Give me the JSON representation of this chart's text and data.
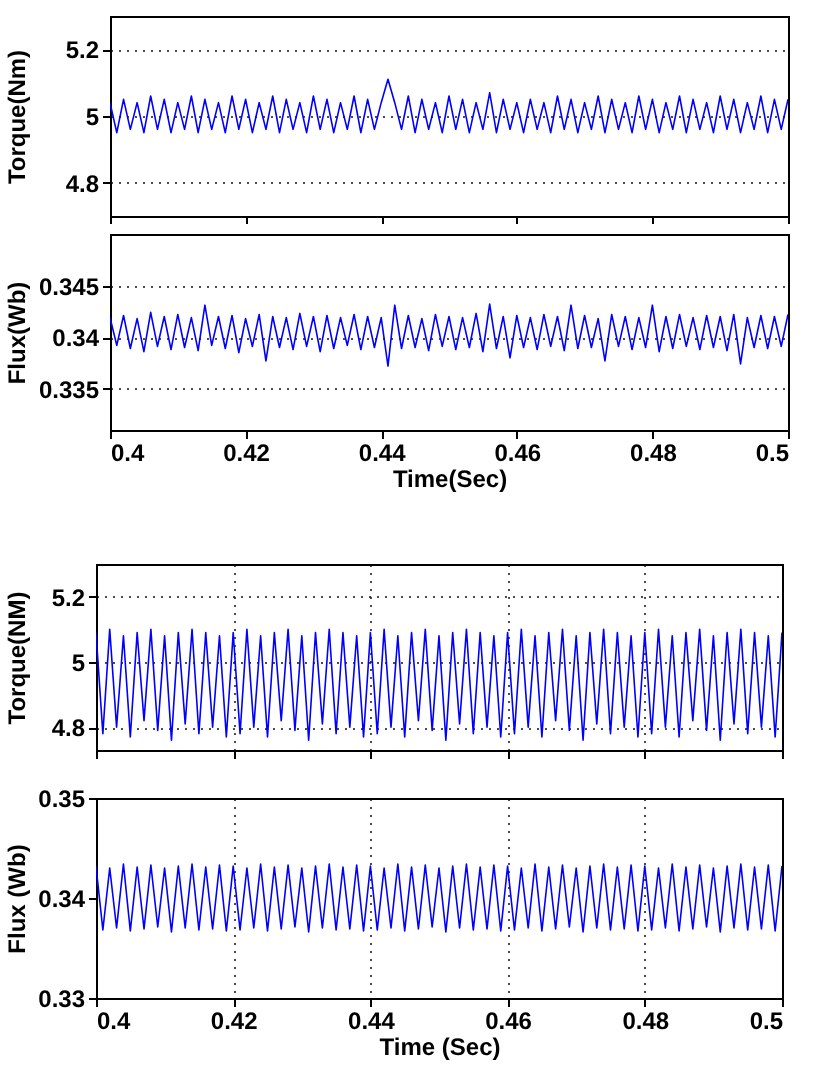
{
  "chart_data": [
    {
      "type": "line",
      "ylabel": "Torque(Nm)",
      "xlim": [
        0.4,
        0.5
      ],
      "xticks": [
        0.4,
        0.42,
        0.44,
        0.46,
        0.48,
        0.5
      ],
      "ylim": [
        4.7,
        5.3
      ],
      "yticks": [
        4.8,
        5,
        5.2
      ],
      "grid": "y",
      "tick_labels": "y",
      "x": [
        0.4,
        0.401,
        0.402,
        0.403,
        0.404,
        0.405,
        0.406,
        0.407,
        0.408,
        0.409,
        0.41,
        0.411,
        0.412,
        0.413,
        0.414,
        0.415,
        0.416,
        0.417,
        0.418,
        0.419,
        0.42,
        0.421,
        0.422,
        0.423,
        0.424,
        0.425,
        0.426,
        0.427,
        0.428,
        0.429,
        0.43,
        0.431,
        0.432,
        0.433,
        0.434,
        0.435,
        0.436,
        0.437,
        0.438,
        0.439,
        0.44,
        0.441,
        0.442,
        0.443,
        0.444,
        0.445,
        0.446,
        0.447,
        0.448,
        0.449,
        0.45,
        0.451,
        0.452,
        0.453,
        0.454,
        0.455,
        0.456,
        0.457,
        0.458,
        0.459,
        0.46,
        0.461,
        0.462,
        0.463,
        0.464,
        0.465,
        0.466,
        0.467,
        0.468,
        0.469,
        0.47,
        0.471,
        0.472,
        0.473,
        0.474,
        0.475,
        0.476,
        0.477,
        0.478,
        0.479,
        0.48,
        0.481,
        0.482,
        0.483,
        0.484,
        0.485,
        0.486,
        0.487,
        0.488,
        0.489,
        0.49,
        0.491,
        0.492,
        0.493,
        0.494,
        0.495,
        0.496,
        0.497,
        0.498,
        0.499,
        0.5
      ],
      "series": [
        {
          "color": "#0000ff",
          "values": [
            5.04,
            4.95,
            5.05,
            4.96,
            5.04,
            4.95,
            5.06,
            4.96,
            5.05,
            4.95,
            5.04,
            4.96,
            5.06,
            4.95,
            5.05,
            4.96,
            5.04,
            4.95,
            5.06,
            4.96,
            5.05,
            4.95,
            5.04,
            4.96,
            5.06,
            4.95,
            5.05,
            4.96,
            5.04,
            4.95,
            5.06,
            4.96,
            5.05,
            4.95,
            5.04,
            4.96,
            5.06,
            4.95,
            5.05,
            4.96,
            5.04,
            5.11,
            5.04,
            4.96,
            5.06,
            4.95,
            5.05,
            4.96,
            5.04,
            4.95,
            5.06,
            4.96,
            5.05,
            4.95,
            5.04,
            4.96,
            5.07,
            4.95,
            5.05,
            4.96,
            5.04,
            4.95,
            5.05,
            4.96,
            5.04,
            4.95,
            5.06,
            4.96,
            5.05,
            4.95,
            5.04,
            4.96,
            5.06,
            4.95,
            5.05,
            4.96,
            5.04,
            4.95,
            5.06,
            4.96,
            5.05,
            4.95,
            5.04,
            4.96,
            5.06,
            4.95,
            5.05,
            4.96,
            5.04,
            4.95,
            5.06,
            4.96,
            5.05,
            4.95,
            5.04,
            4.96,
            5.06,
            4.95,
            5.05,
            4.96,
            5.05
          ]
        }
      ]
    },
    {
      "type": "line",
      "xlabel": "Time(Sec)",
      "ylabel": "Flux(Wb)",
      "xlim": [
        0.4,
        0.5
      ],
      "xticks": [
        0.4,
        0.42,
        0.44,
        0.46,
        0.48,
        0.5
      ],
      "ylim": [
        0.331,
        0.35
      ],
      "yticks": [
        0.335,
        0.34,
        0.345
      ],
      "grid": "y",
      "x": [
        0.4,
        0.401,
        0.402,
        0.403,
        0.404,
        0.405,
        0.406,
        0.407,
        0.408,
        0.409,
        0.41,
        0.411,
        0.412,
        0.413,
        0.414,
        0.415,
        0.416,
        0.417,
        0.418,
        0.419,
        0.42,
        0.421,
        0.422,
        0.423,
        0.424,
        0.425,
        0.426,
        0.427,
        0.428,
        0.429,
        0.43,
        0.431,
        0.432,
        0.433,
        0.434,
        0.435,
        0.436,
        0.437,
        0.438,
        0.439,
        0.44,
        0.441,
        0.442,
        0.443,
        0.444,
        0.445,
        0.446,
        0.447,
        0.448,
        0.449,
        0.45,
        0.451,
        0.452,
        0.453,
        0.454,
        0.455,
        0.456,
        0.457,
        0.458,
        0.459,
        0.46,
        0.461,
        0.462,
        0.463,
        0.464,
        0.465,
        0.466,
        0.467,
        0.468,
        0.469,
        0.47,
        0.471,
        0.472,
        0.473,
        0.474,
        0.475,
        0.476,
        0.477,
        0.478,
        0.479,
        0.48,
        0.481,
        0.482,
        0.483,
        0.484,
        0.485,
        0.486,
        0.487,
        0.488,
        0.489,
        0.49,
        0.491,
        0.492,
        0.493,
        0.494,
        0.495,
        0.496,
        0.497,
        0.498,
        0.499,
        0.5
      ],
      "series": [
        {
          "color": "#0000ff",
          "values": [
            0.3419,
            0.3392,
            0.3421,
            0.3389,
            0.3418,
            0.3386,
            0.3424,
            0.3391,
            0.342,
            0.3388,
            0.3422,
            0.339,
            0.3419,
            0.3387,
            0.3431,
            0.3392,
            0.342,
            0.3389,
            0.3421,
            0.3385,
            0.3418,
            0.3391,
            0.3422,
            0.3377,
            0.342,
            0.339,
            0.3419,
            0.3388,
            0.3423,
            0.3391,
            0.342,
            0.3386,
            0.3421,
            0.3389,
            0.3419,
            0.3392,
            0.3422,
            0.3388,
            0.342,
            0.339,
            0.3419,
            0.3372,
            0.3431,
            0.3389,
            0.3421,
            0.339,
            0.3418,
            0.3387,
            0.3422,
            0.3391,
            0.342,
            0.3388,
            0.3419,
            0.339,
            0.3423,
            0.3386,
            0.3432,
            0.3389,
            0.342,
            0.338,
            0.3421,
            0.339,
            0.3419,
            0.3388,
            0.3422,
            0.3391,
            0.342,
            0.3387,
            0.3431,
            0.3389,
            0.3421,
            0.339,
            0.3418,
            0.3377,
            0.3422,
            0.3391,
            0.342,
            0.3388,
            0.3419,
            0.339,
            0.3431,
            0.3386,
            0.342,
            0.3389,
            0.3422,
            0.3391,
            0.3419,
            0.3388,
            0.3421,
            0.339,
            0.342,
            0.3387,
            0.3422,
            0.3374,
            0.3419,
            0.339,
            0.3421,
            0.3389,
            0.342,
            0.3391,
            0.3422
          ]
        }
      ]
    },
    {
      "type": "line",
      "ylabel": "Torque(NM)",
      "xlim": [
        0.4,
        0.5
      ],
      "xticks": [
        0.4,
        0.42,
        0.44,
        0.46,
        0.48,
        0.5
      ],
      "ylim": [
        4.73,
        5.3
      ],
      "yticks": [
        4.8,
        5,
        5.2
      ],
      "grid": true,
      "tick_labels": "y",
      "x": [
        0.4,
        0.401,
        0.402,
        0.403,
        0.404,
        0.405,
        0.406,
        0.407,
        0.408,
        0.409,
        0.41,
        0.411,
        0.412,
        0.413,
        0.414,
        0.415,
        0.416,
        0.417,
        0.418,
        0.419,
        0.42,
        0.421,
        0.422,
        0.423,
        0.424,
        0.425,
        0.426,
        0.427,
        0.428,
        0.429,
        0.43,
        0.431,
        0.432,
        0.433,
        0.434,
        0.435,
        0.436,
        0.437,
        0.438,
        0.439,
        0.44,
        0.441,
        0.442,
        0.443,
        0.444,
        0.445,
        0.446,
        0.447,
        0.448,
        0.449,
        0.45,
        0.451,
        0.452,
        0.453,
        0.454,
        0.455,
        0.456,
        0.457,
        0.458,
        0.459,
        0.46,
        0.461,
        0.462,
        0.463,
        0.464,
        0.465,
        0.466,
        0.467,
        0.468,
        0.469,
        0.47,
        0.471,
        0.472,
        0.473,
        0.474,
        0.475,
        0.476,
        0.477,
        0.478,
        0.479,
        0.48,
        0.481,
        0.482,
        0.483,
        0.484,
        0.485,
        0.486,
        0.487,
        0.488,
        0.489,
        0.49,
        0.491,
        0.492,
        0.493,
        0.494,
        0.495,
        0.496,
        0.497,
        0.498,
        0.499,
        0.5
      ],
      "series": [
        {
          "color": "#0000ff",
          "values": [
            5.09,
            4.78,
            5.1,
            4.8,
            5.08,
            4.77,
            5.09,
            4.82,
            5.1,
            4.79,
            5.08,
            4.76,
            5.09,
            4.81,
            5.1,
            4.78,
            5.09,
            4.8,
            5.08,
            4.77,
            5.09,
            4.78,
            5.1,
            4.8,
            5.08,
            4.77,
            5.09,
            4.82,
            5.1,
            4.79,
            5.08,
            4.76,
            5.09,
            4.81,
            5.1,
            4.78,
            5.09,
            4.8,
            5.08,
            4.77,
            5.09,
            4.78,
            5.1,
            4.8,
            5.08,
            4.77,
            5.09,
            4.82,
            5.1,
            4.79,
            5.08,
            4.76,
            5.09,
            4.81,
            5.1,
            4.78,
            5.09,
            4.8,
            5.08,
            4.77,
            5.09,
            4.78,
            5.1,
            4.8,
            5.08,
            4.77,
            5.09,
            4.82,
            5.1,
            4.79,
            5.08,
            4.76,
            5.09,
            4.81,
            5.1,
            4.78,
            5.09,
            4.8,
            5.08,
            4.77,
            5.09,
            4.78,
            5.1,
            4.8,
            5.08,
            4.77,
            5.09,
            4.82,
            5.1,
            4.79,
            5.08,
            4.76,
            5.09,
            4.81,
            5.1,
            4.78,
            5.09,
            4.8,
            5.08,
            4.77,
            5.09
          ]
        }
      ]
    },
    {
      "type": "line",
      "xlabel": "Time (Sec)",
      "ylabel": "Flux (Wb)",
      "xlim": [
        0.4,
        0.5
      ],
      "xticks": [
        0.4,
        0.42,
        0.44,
        0.46,
        0.48,
        0.5
      ],
      "ylim": [
        0.33,
        0.35
      ],
      "yticks": [
        0.33,
        0.34,
        0.35
      ],
      "grid": "x",
      "x": [
        0.4,
        0.401,
        0.402,
        0.403,
        0.404,
        0.405,
        0.406,
        0.407,
        0.408,
        0.409,
        0.41,
        0.411,
        0.412,
        0.413,
        0.414,
        0.415,
        0.416,
        0.417,
        0.418,
        0.419,
        0.42,
        0.421,
        0.422,
        0.423,
        0.424,
        0.425,
        0.426,
        0.427,
        0.428,
        0.429,
        0.43,
        0.431,
        0.432,
        0.433,
        0.434,
        0.435,
        0.436,
        0.437,
        0.438,
        0.439,
        0.44,
        0.441,
        0.442,
        0.443,
        0.444,
        0.445,
        0.446,
        0.447,
        0.448,
        0.449,
        0.45,
        0.451,
        0.452,
        0.453,
        0.454,
        0.455,
        0.456,
        0.457,
        0.458,
        0.459,
        0.46,
        0.461,
        0.462,
        0.463,
        0.464,
        0.465,
        0.466,
        0.467,
        0.468,
        0.469,
        0.47,
        0.471,
        0.472,
        0.473,
        0.474,
        0.475,
        0.476,
        0.477,
        0.478,
        0.479,
        0.48,
        0.481,
        0.482,
        0.483,
        0.484,
        0.485,
        0.486,
        0.487,
        0.488,
        0.489,
        0.49,
        0.491,
        0.492,
        0.493,
        0.494,
        0.495,
        0.496,
        0.497,
        0.498,
        0.499,
        0.5
      ],
      "series": [
        {
          "color": "#0000ff",
          "values": [
            0.3432,
            0.3368,
            0.343,
            0.337,
            0.3434,
            0.3367,
            0.3431,
            0.3369,
            0.3433,
            0.3371,
            0.343,
            0.3366,
            0.3432,
            0.337,
            0.3434,
            0.3368,
            0.3431,
            0.3369,
            0.3433,
            0.3367,
            0.3432,
            0.3368,
            0.343,
            0.337,
            0.3434,
            0.3367,
            0.3431,
            0.3369,
            0.3433,
            0.3371,
            0.343,
            0.3366,
            0.3432,
            0.337,
            0.3434,
            0.3368,
            0.3431,
            0.3369,
            0.3433,
            0.3367,
            0.3432,
            0.3368,
            0.343,
            0.337,
            0.3434,
            0.3367,
            0.3431,
            0.3369,
            0.3433,
            0.3371,
            0.343,
            0.3366,
            0.3432,
            0.337,
            0.3434,
            0.3368,
            0.3431,
            0.3369,
            0.3433,
            0.3367,
            0.3432,
            0.3368,
            0.343,
            0.337,
            0.3434,
            0.3367,
            0.3431,
            0.3369,
            0.3433,
            0.3371,
            0.343,
            0.3366,
            0.3432,
            0.337,
            0.3434,
            0.3368,
            0.3431,
            0.3369,
            0.3433,
            0.3367,
            0.3432,
            0.3368,
            0.343,
            0.337,
            0.3434,
            0.3367,
            0.3431,
            0.3369,
            0.3433,
            0.3371,
            0.343,
            0.3366,
            0.3432,
            0.337,
            0.3434,
            0.3368,
            0.3431,
            0.3369,
            0.3433,
            0.3367,
            0.3432
          ]
        }
      ]
    }
  ]
}
